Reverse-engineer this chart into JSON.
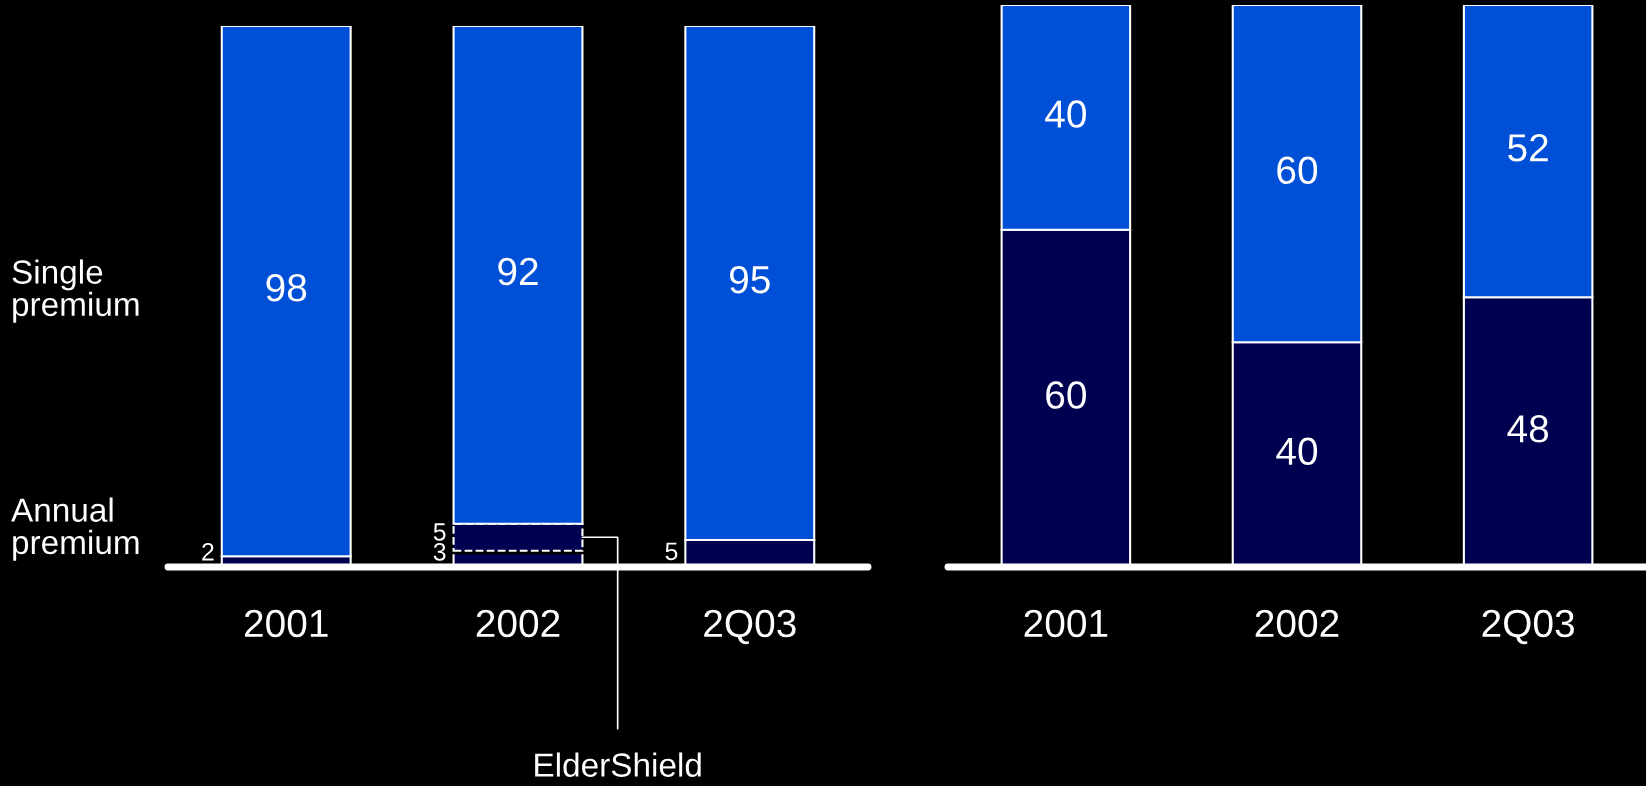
{
  "chart_data": [
    {
      "type": "bar",
      "categories": [
        "2001",
        "2002",
        "2Q03"
      ],
      "stacked": true,
      "data_labels": true,
      "tick_labels": "x",
      "series": [
        {
          "name": "Annual premium",
          "color": "#000050",
          "values": [
            2,
            3,
            5
          ]
        },
        {
          "name": "ElderShield",
          "color": "#000050",
          "values": [
            null,
            5,
            null
          ]
        },
        {
          "name": "Single premium",
          "color": "#0050d7",
          "values": [
            98,
            92,
            95
          ]
        }
      ]
    },
    {
      "type": "bar",
      "categories": [
        "2001",
        "2002",
        "2Q03"
      ],
      "stacked": true,
      "data_labels": true,
      "tick_labels": "x",
      "series": [
        {
          "color": "#000050",
          "values": [
            60,
            40,
            48
          ]
        },
        {
          "color": "#0050d7",
          "values": [
            40,
            60,
            52
          ]
        }
      ]
    }
  ]
}
